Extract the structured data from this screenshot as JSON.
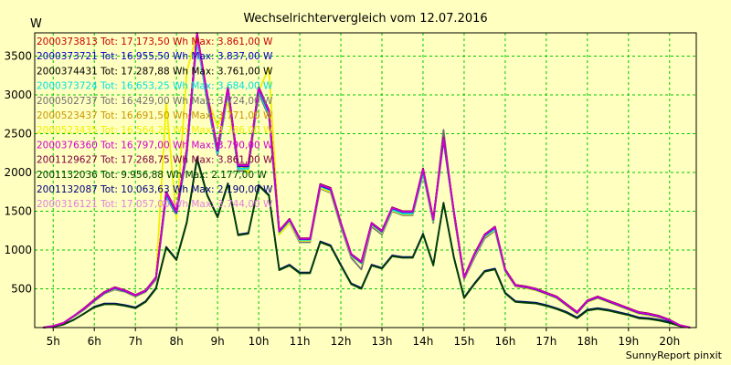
{
  "chart_data": {
    "type": "line",
    "title": "Wechselrichtervergleich vom 12.07.2016",
    "ylabel": "W",
    "footer": "SunnyReport pinxit",
    "ylim": [
      0,
      3800
    ],
    "xlim": [
      4.55,
      20.65
    ],
    "y_ticks": [
      500,
      1000,
      1500,
      2000,
      2500,
      3000,
      3500
    ],
    "x_ticks": [
      {
        "value": 5,
        "label": "5h"
      },
      {
        "value": 6,
        "label": "6h"
      },
      {
        "value": 7,
        "label": "7h"
      },
      {
        "value": 8,
        "label": "8h"
      },
      {
        "value": 9,
        "label": "9h"
      },
      {
        "value": 10,
        "label": "10h"
      },
      {
        "value": 11,
        "label": "11h"
      },
      {
        "value": 12,
        "label": "12h"
      },
      {
        "value": 13,
        "label": "13h"
      },
      {
        "value": 14,
        "label": "14h"
      },
      {
        "value": 15,
        "label": "15h"
      },
      {
        "value": 16,
        "label": "16h"
      },
      {
        "value": 17,
        "label": "17h"
      },
      {
        "value": 18,
        "label": "18h"
      },
      {
        "value": 19,
        "label": "19h"
      },
      {
        "value": 20,
        "label": "20h"
      }
    ],
    "grid": true,
    "legend_position": "top-left",
    "x": [
      4.75,
      5.0,
      5.25,
      5.5,
      5.75,
      6.0,
      6.25,
      6.5,
      6.75,
      7.0,
      7.25,
      7.5,
      7.75,
      8.0,
      8.25,
      8.5,
      8.75,
      9.0,
      9.25,
      9.5,
      9.75,
      10.0,
      10.25,
      10.5,
      10.75,
      11.0,
      11.25,
      11.5,
      11.75,
      12.0,
      12.25,
      12.5,
      12.75,
      13.0,
      13.25,
      13.5,
      13.75,
      14.0,
      14.25,
      14.5,
      14.75,
      15.0,
      15.25,
      15.5,
      15.75,
      16.0,
      16.25,
      16.5,
      16.75,
      17.0,
      17.25,
      17.5,
      17.75,
      18.0,
      18.25,
      18.5,
      18.75,
      19.0,
      19.25,
      19.5,
      19.75,
      20.0,
      20.25,
      20.5
    ],
    "series": [
      {
        "name": "2000373813",
        "legend": "2000373813 Tot: 17.173,50 Wh Max: 3.861,00 W",
        "color": "#c80000",
        "values": [
          0,
          20,
          60,
          150,
          250,
          360,
          460,
          520,
          480,
          420,
          480,
          650,
          1750,
          1500,
          2300,
          3850,
          3000,
          2300,
          3100,
          2100,
          2100,
          3100,
          2800,
          1250,
          1400,
          1150,
          1150,
          1850,
          1800,
          1350,
          950,
          850,
          1350,
          1250,
          1550,
          1500,
          1500,
          2050,
          1400,
          2450,
          1500,
          650,
          950,
          1200,
          1300,
          750,
          550,
          530,
          500,
          450,
          400,
          300,
          200,
          350,
          400,
          350,
          300,
          250,
          200,
          180,
          150,
          100,
          30,
          0
        ]
      },
      {
        "name": "2000373721",
        "legend": "2000373721 Tot: 16.955,50 Wh Max: 3.837,00 W",
        "color": "#0000c8",
        "values": [
          0,
          20,
          60,
          150,
          240,
          350,
          450,
          510,
          470,
          410,
          470,
          640,
          1730,
          1480,
          2280,
          3830,
          2980,
          2280,
          3080,
          2080,
          2080,
          3080,
          2780,
          1240,
          1390,
          1140,
          1140,
          1830,
          1780,
          1340,
          940,
          840,
          1340,
          1240,
          1540,
          1490,
          1490,
          2030,
          1390,
          2430,
          1490,
          640,
          940,
          1190,
          1290,
          740,
          540,
          520,
          490,
          440,
          390,
          290,
          190,
          340,
          390,
          340,
          290,
          240,
          190,
          170,
          140,
          90,
          30,
          0
        ]
      },
      {
        "name": "2000374431",
        "legend": "2000374431 Tot: 17.287,88 Wh Max: 3.761,00 W",
        "color": "#000000",
        "values": [
          0,
          20,
          60,
          150,
          250,
          360,
          460,
          520,
          480,
          420,
          480,
          650,
          1750,
          1500,
          2300,
          3760,
          3000,
          2300,
          3100,
          2100,
          2100,
          3100,
          2800,
          1250,
          1400,
          1150,
          1150,
          1850,
          1800,
          1350,
          950,
          850,
          1350,
          1250,
          1550,
          1500,
          1500,
          2050,
          1400,
          2450,
          1500,
          650,
          950,
          1200,
          1300,
          750,
          550,
          530,
          500,
          450,
          400,
          300,
          200,
          350,
          400,
          350,
          300,
          250,
          200,
          180,
          150,
          100,
          30,
          0
        ]
      },
      {
        "name": "2000373724",
        "legend": "2000373724 Tot: 16.653,25 Wh Max: 3.684,00 W",
        "color": "#00e0e0",
        "values": [
          0,
          20,
          60,
          145,
          240,
          350,
          450,
          505,
          470,
          410,
          470,
          640,
          1700,
          1470,
          2250,
          3680,
          2950,
          2250,
          3050,
          2050,
          2050,
          3050,
          2750,
          1230,
          1380,
          1130,
          1130,
          1820,
          1770,
          1330,
          930,
          830,
          1330,
          1230,
          1520,
          1470,
          1470,
          2000,
          1380,
          2400,
          1470,
          640,
          930,
          1180,
          1270,
          730,
          540,
          520,
          490,
          440,
          390,
          290,
          190,
          340,
          390,
          340,
          290,
          240,
          190,
          170,
          140,
          90,
          30,
          0
        ]
      },
      {
        "name": "2000502737",
        "legend": "2000502737 Tot: 16.429,00 Wh Max: 3.724,00 W",
        "color": "#707070",
        "values": [
          0,
          20,
          55,
          140,
          230,
          340,
          440,
          490,
          460,
          400,
          460,
          620,
          1680,
          1450,
          2220,
          3720,
          2900,
          2220,
          3020,
          2020,
          2020,
          3020,
          2720,
          1200,
          1350,
          1100,
          1100,
          1790,
          1740,
          1300,
          900,
          750,
          1300,
          1200,
          1500,
          1450,
          1450,
          1980,
          1350,
          2550,
          1450,
          620,
          900,
          1150,
          1250,
          720,
          530,
          510,
          480,
          430,
          380,
          280,
          180,
          330,
          380,
          330,
          280,
          230,
          180,
          160,
          130,
          90,
          30,
          0
        ]
      },
      {
        "name": "2000523437",
        "legend": "2000523437 Tot: 16.691,50 Wh Max: 3.771,00 W",
        "color": "#c89600",
        "values": [
          0,
          20,
          60,
          145,
          240,
          350,
          450,
          505,
          470,
          410,
          470,
          640,
          1720,
          1480,
          2260,
          3770,
          2960,
          2260,
          3060,
          2060,
          2060,
          3060,
          2760,
          1230,
          1380,
          1130,
          1130,
          1820,
          1770,
          1330,
          930,
          830,
          1330,
          1230,
          1520,
          1470,
          1470,
          2010,
          1380,
          2420,
          1470,
          640,
          930,
          1180,
          1270,
          730,
          540,
          520,
          490,
          440,
          390,
          290,
          190,
          340,
          390,
          340,
          290,
          240,
          190,
          170,
          140,
          90,
          30,
          0
        ]
      },
      {
        "name": "2000523435",
        "legend": "2000523435 Tot: 16.564,25 Wh Max: 3.786,00 W",
        "color": "#f0f000",
        "values": [
          0,
          20,
          60,
          145,
          235,
          345,
          445,
          500,
          465,
          405,
          465,
          635,
          2900,
          1400,
          3300,
          3780,
          2950,
          2600,
          2900,
          2100,
          2000,
          3050,
          3350,
          1200,
          1350,
          1120,
          1120,
          1800,
          1750,
          1320,
          920,
          820,
          1320,
          1220,
          1510,
          1460,
          1460,
          2000,
          1370,
          2400,
          1460,
          630,
          920,
          1170,
          1260,
          720,
          530,
          510,
          480,
          430,
          380,
          280,
          180,
          330,
          380,
          330,
          280,
          230,
          180,
          160,
          130,
          90,
          30,
          0
        ]
      },
      {
        "name": "2000376360",
        "legend": "2000376360 Tot: 16.797,00 Wh Max: 3.790,00 W",
        "color": "#d000d0",
        "values": [
          0,
          20,
          60,
          150,
          245,
          355,
          455,
          515,
          475,
          415,
          475,
          645,
          1740,
          1490,
          2290,
          3790,
          2990,
          2290,
          3090,
          2090,
          2090,
          3090,
          2790,
          1245,
          1395,
          1145,
          1145,
          1840,
          1790,
          1345,
          945,
          845,
          1345,
          1245,
          1545,
          1495,
          1495,
          2040,
          1395,
          2440,
          1495,
          645,
          945,
          1195,
          1295,
          745,
          545,
          525,
          495,
          445,
          395,
          295,
          195,
          345,
          395,
          345,
          295,
          245,
          195,
          175,
          145,
          95,
          30,
          0
        ]
      },
      {
        "name": "2001129627",
        "legend": "2001129627 Tot: 17.268,75 Wh Max: 3.861,00 W",
        "color": "#800040",
        "values": [
          0,
          20,
          60,
          150,
          250,
          360,
          460,
          520,
          480,
          420,
          480,
          650,
          1750,
          1500,
          2300,
          3860,
          3000,
          2300,
          3100,
          2100,
          2100,
          3100,
          2800,
          1250,
          1400,
          1150,
          1150,
          1850,
          1800,
          1350,
          950,
          850,
          1350,
          1250,
          1550,
          1500,
          1500,
          2050,
          1400,
          2450,
          1500,
          650,
          950,
          1200,
          1300,
          750,
          550,
          530,
          500,
          450,
          400,
          300,
          200,
          350,
          400,
          350,
          300,
          250,
          200,
          180,
          150,
          100,
          30,
          0
        ]
      },
      {
        "name": "2001132036",
        "legend": "2001132036 Tot: 9.956,88 Wh Max: 2.177,00 W",
        "color": "#004000",
        "values": [
          0,
          10,
          40,
          100,
          180,
          260,
          300,
          300,
          280,
          250,
          330,
          500,
          1030,
          870,
          1350,
          2170,
          1700,
          1420,
          1850,
          1190,
          1210,
          1830,
          1700,
          740,
          800,
          700,
          700,
          1100,
          1050,
          800,
          560,
          500,
          800,
          760,
          920,
          900,
          900,
          1200,
          800,
          1600,
          900,
          380,
          560,
          720,
          750,
          440,
          330,
          320,
          310,
          280,
          240,
          190,
          120,
          220,
          240,
          220,
          190,
          160,
          120,
          110,
          90,
          60,
          20,
          0
        ]
      },
      {
        "name": "2001132087",
        "legend": "2001132087 Tot: 10.063,63 Wh Max: 2.190,00 W",
        "color": "#000080",
        "values": [
          0,
          10,
          40,
          100,
          180,
          270,
          310,
          310,
          290,
          260,
          340,
          510,
          1040,
          880,
          1360,
          2190,
          1710,
          1430,
          1860,
          1200,
          1220,
          1840,
          1710,
          750,
          810,
          710,
          710,
          1110,
          1060,
          810,
          570,
          510,
          810,
          770,
          930,
          910,
          910,
          1210,
          810,
          1610,
          910,
          390,
          570,
          730,
          760,
          450,
          340,
          330,
          320,
          290,
          250,
          200,
          130,
          230,
          250,
          230,
          200,
          170,
          130,
          120,
          100,
          70,
          20,
          0
        ]
      },
      {
        "name": "2000316121",
        "legend": "2000316121 Tot: 17.057,00 Wh Max: 3.744,00 W",
        "color": "#e080e0",
        "values": [
          0,
          20,
          60,
          150,
          250,
          360,
          460,
          520,
          480,
          420,
          480,
          650,
          1750,
          1500,
          2300,
          3740,
          3000,
          2300,
          3100,
          2100,
          2100,
          3100,
          2800,
          1250,
          1400,
          1150,
          1150,
          1850,
          1800,
          1350,
          950,
          850,
          1350,
          1250,
          1550,
          1500,
          1500,
          2050,
          1400,
          2450,
          1500,
          650,
          950,
          1200,
          1300,
          750,
          550,
          530,
          500,
          450,
          400,
          300,
          200,
          350,
          400,
          350,
          300,
          250,
          200,
          180,
          150,
          100,
          30,
          0
        ]
      }
    ]
  }
}
